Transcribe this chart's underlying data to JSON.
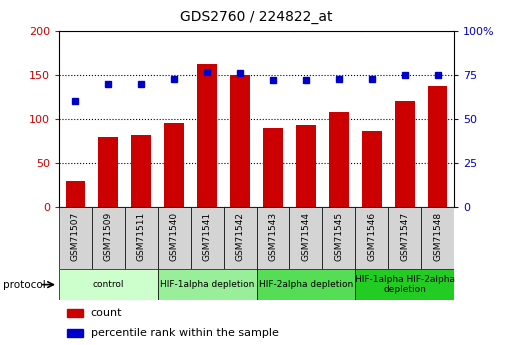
{
  "title": "GDS2760 / 224822_at",
  "samples": [
    "GSM71507",
    "GSM71509",
    "GSM71511",
    "GSM71540",
    "GSM71541",
    "GSM71542",
    "GSM71543",
    "GSM71544",
    "GSM71545",
    "GSM71546",
    "GSM71547",
    "GSM71548"
  ],
  "counts": [
    30,
    80,
    82,
    96,
    162,
    150,
    90,
    93,
    108,
    86,
    120,
    137
  ],
  "percentiles": [
    60,
    70,
    70,
    73,
    77,
    76,
    72,
    72,
    73,
    73,
    75,
    75
  ],
  "ylim_left": [
    0,
    200
  ],
  "ylim_right": [
    0,
    100
  ],
  "yticks_left": [
    0,
    50,
    100,
    150,
    200
  ],
  "yticks_right": [
    0,
    25,
    50,
    75,
    100
  ],
  "yticklabels_right": [
    "0",
    "25",
    "50",
    "75",
    "100%"
  ],
  "bar_color": "#cc0000",
  "dot_color": "#0000cc",
  "tick_label_color_left": "#cc0000",
  "tick_label_color_right": "#0000cc",
  "sample_box_color": "#d4d4d4",
  "protocol_groups": [
    {
      "label": "control",
      "start": 0,
      "end": 2,
      "color": "#ccffcc"
    },
    {
      "label": "HIF-1alpha depletion",
      "start": 3,
      "end": 5,
      "color": "#99ee99"
    },
    {
      "label": "HIF-2alpha depletion",
      "start": 6,
      "end": 8,
      "color": "#55dd55"
    },
    {
      "label": "HIF-1alpha HIF-2alpha\ndepletion",
      "start": 9,
      "end": 11,
      "color": "#22cc22"
    }
  ],
  "legend_items": [
    {
      "label": "count",
      "color": "#cc0000"
    },
    {
      "label": "percentile rank within the sample",
      "color": "#0000cc"
    }
  ]
}
